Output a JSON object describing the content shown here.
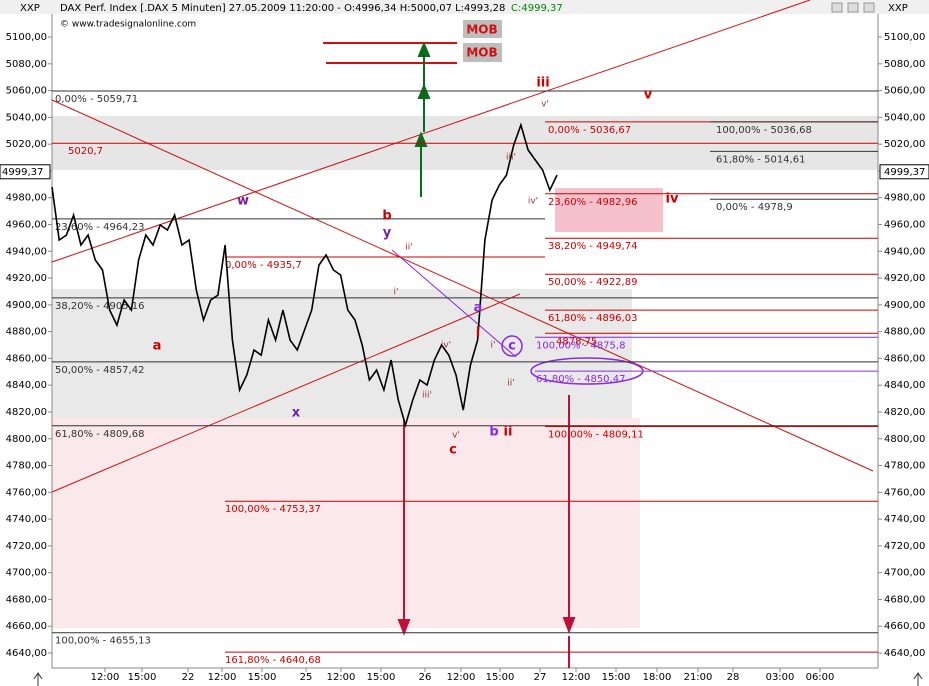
{
  "header": {
    "symbol": "XXP",
    "title": "DAX Perf. Index [.DAX  5 Minuten] 27.05.2009 11:20:00 - O:4996,34 H:5000,07 L:4993,28",
    "close": "C:4999,37",
    "source": "© www.tradesignalonline.com",
    "symbol_right": "XXP"
  },
  "chart_data": {
    "type": "line",
    "x_labels": [
      "12:00",
      "15:00",
      "22",
      "12:00",
      "15:00",
      "25",
      "12:00",
      "15:00",
      "26",
      "12:00",
      "15:00",
      "27",
      "12:00",
      "15:00",
      "18:00",
      "21:00",
      "28",
      "03:00",
      "06:00"
    ],
    "series": [
      {
        "name": "DAX",
        "color": "#000000",
        "values": [
          4988.0,
          4948.4,
          4952.1,
          4967.1,
          4944.7,
          4952.1,
          4933.5,
          4926.0,
          4896.1,
          4884.9,
          4903.6,
          4896.1,
          4933.5,
          4952.1,
          4944.7,
          4959.6,
          4955.9,
          4967.1,
          4944.7,
          4948.4,
          4911.1,
          4888.7,
          4903.6,
          4907.3,
          4944.7,
          4873.7,
          4836.4,
          4847.6,
          4866.3,
          4862.5,
          4888.7,
          4873.7,
          4896.1,
          4873.7,
          4866.3,
          4881.2,
          4896.1,
          4929.7,
          4937.2,
          4926.0,
          4922.3,
          4896.1,
          4888.7,
          4870.0,
          4843.9,
          4851.3,
          4836.4,
          4858.8,
          4828.9,
          4810.2,
          4828.9,
          4843.9,
          4840.1,
          4858.8,
          4870.0,
          4862.5,
          4847.6,
          4821.4,
          4855.0,
          4873.7,
          4948.4,
          4978.3,
          4989.5,
          4996.9,
          5019.3,
          5034.3,
          5015.6,
          5008.1,
          5000.7,
          4985.7,
          4996.9
        ]
      }
    ],
    "ylim": [
      4628.8,
      5117.2
    ],
    "yticks": [
      {
        "value": 4640,
        "label": "4640,00"
      },
      {
        "value": 4660,
        "label": "4660,00"
      },
      {
        "value": 4680,
        "label": "4680,00"
      },
      {
        "value": 4700,
        "label": "4700,00"
      },
      {
        "value": 4720,
        "label": "4720,00"
      },
      {
        "value": 4740,
        "label": "4740,00"
      },
      {
        "value": 4760,
        "label": "4760,00"
      },
      {
        "value": 4780,
        "label": "4780,00"
      },
      {
        "value": 4800,
        "label": "4800,00"
      },
      {
        "value": 4820,
        "label": "4820,00"
      },
      {
        "value": 4840,
        "label": "4840,00"
      },
      {
        "value": 4860,
        "label": "4860,00"
      },
      {
        "value": 4880,
        "label": "4880,00"
      },
      {
        "value": 4900,
        "label": "4900,00"
      },
      {
        "value": 4920,
        "label": "4920,00"
      },
      {
        "value": 4940,
        "label": "4940,00"
      },
      {
        "value": 4960,
        "label": "4960,00"
      },
      {
        "value": 4980,
        "label": "4980,00"
      },
      {
        "value": 5000,
        "label": "5000,00"
      },
      {
        "value": 5020,
        "label": "5020,00"
      },
      {
        "value": 5040,
        "label": "5040,00"
      },
      {
        "value": 5060,
        "label": "5060,00"
      },
      {
        "value": 5080,
        "label": "5080,00"
      },
      {
        "value": 5100,
        "label": "5100,00"
      }
    ],
    "last_price": {
      "value": 4999.37,
      "label": "4999,37"
    }
  },
  "levels": [
    {
      "value": 5059.71,
      "label": "0,00% - 5059,71",
      "color": "#333333"
    },
    {
      "value": 5020.7,
      "label": "5020,7",
      "color": "#cc0000"
    },
    {
      "value": 4964.23,
      "label": "23,60% - 4964,23",
      "color": "#333333"
    },
    {
      "value": 4935.7,
      "label": "0,00% - 4935,7",
      "color": "#cc0000"
    },
    {
      "value": 4905.16,
      "label": "38,20% - 4905,16",
      "color": "#333333"
    },
    {
      "value": 4857.42,
      "label": "50,00% - 4857,42",
      "color": "#333333"
    },
    {
      "value": 4809.68,
      "label": "61,80% - 4809,68",
      "color": "#333333"
    },
    {
      "value": 4753.37,
      "label": "100,00% - 4753,37",
      "color": "#cc0000"
    },
    {
      "value": 4655.13,
      "label": "100,00% - 4655,13",
      "color": "#333333"
    },
    {
      "value": 4640.68,
      "label": "161,80% - 4640,68",
      "color": "#cc0000"
    },
    {
      "value": 5036.67,
      "label": "0,00% - 5036,67",
      "color": "#cc0000"
    },
    {
      "value": 4982.96,
      "label": "23,60% - 4982,96",
      "color": "#cc0000"
    },
    {
      "value": 4949.74,
      "label": "38,20% - 4949,74",
      "color": "#cc0000"
    },
    {
      "value": 4922.89,
      "label": "50,00% - 4922,89",
      "color": "#cc0000"
    },
    {
      "value": 4896.03,
      "label": "61,80% - 4896,03",
      "color": "#cc0000"
    },
    {
      "value": 4878.75,
      "label": "4878,75",
      "color": "#cc0000"
    },
    {
      "value": 4809.11,
      "label": "100,00% - 4809,11",
      "color": "#cc0000"
    },
    {
      "value": 4875.8,
      "label": "100,00% - 4875,8",
      "color": "#8a2be2"
    },
    {
      "value": 4850.47,
      "label": "61,80% - 4850,47",
      "color": "#8a2be2"
    },
    {
      "value": 5036.68,
      "label": "100,00% - 5036,68",
      "color": "#333333"
    },
    {
      "value": 5014.61,
      "label": "61,80% - 5014,61",
      "color": "#333333"
    },
    {
      "value": 4978.9,
      "label": "0,00% - 4978,9",
      "color": "#333333"
    }
  ],
  "mob": [
    "MOB",
    "MOB"
  ],
  "wave_labels": [
    {
      "text": "a",
      "color": "#cc0000"
    },
    {
      "text": "b",
      "color": "#cc0000"
    },
    {
      "text": "y",
      "color": "#7a1fa2"
    },
    {
      "text": "w",
      "color": "#7a1fa2"
    },
    {
      "text": "x",
      "color": "#7a1fa2"
    },
    {
      "text": "c",
      "color": "#cc0000"
    },
    {
      "text": "i",
      "color": "#cc0000"
    },
    {
      "text": "a",
      "color": "#8a2be2"
    },
    {
      "text": "ii",
      "color": "#cc0000"
    },
    {
      "text": "b",
      "color": "#8a2be2"
    },
    {
      "text": "iii",
      "color": "#cc0000"
    },
    {
      "text": "iv",
      "color": "#cc0000"
    },
    {
      "text": "v",
      "color": "#cc0000"
    },
    {
      "text": "c",
      "color": "#8a2be2"
    },
    {
      "text": "ii'",
      "color": "#993333"
    },
    {
      "text": "i'",
      "color": "#993333"
    },
    {
      "text": "iv'",
      "color": "#993333"
    },
    {
      "text": "iii'",
      "color": "#993333"
    },
    {
      "text": "v'",
      "color": "#993333"
    },
    {
      "text": "i'",
      "color": "#993333"
    },
    {
      "text": "ii'",
      "color": "#993333"
    },
    {
      "text": "iii'",
      "color": "#993333"
    },
    {
      "text": "iv'",
      "color": "#993333"
    },
    {
      "text": "v'",
      "color": "#993333"
    }
  ]
}
